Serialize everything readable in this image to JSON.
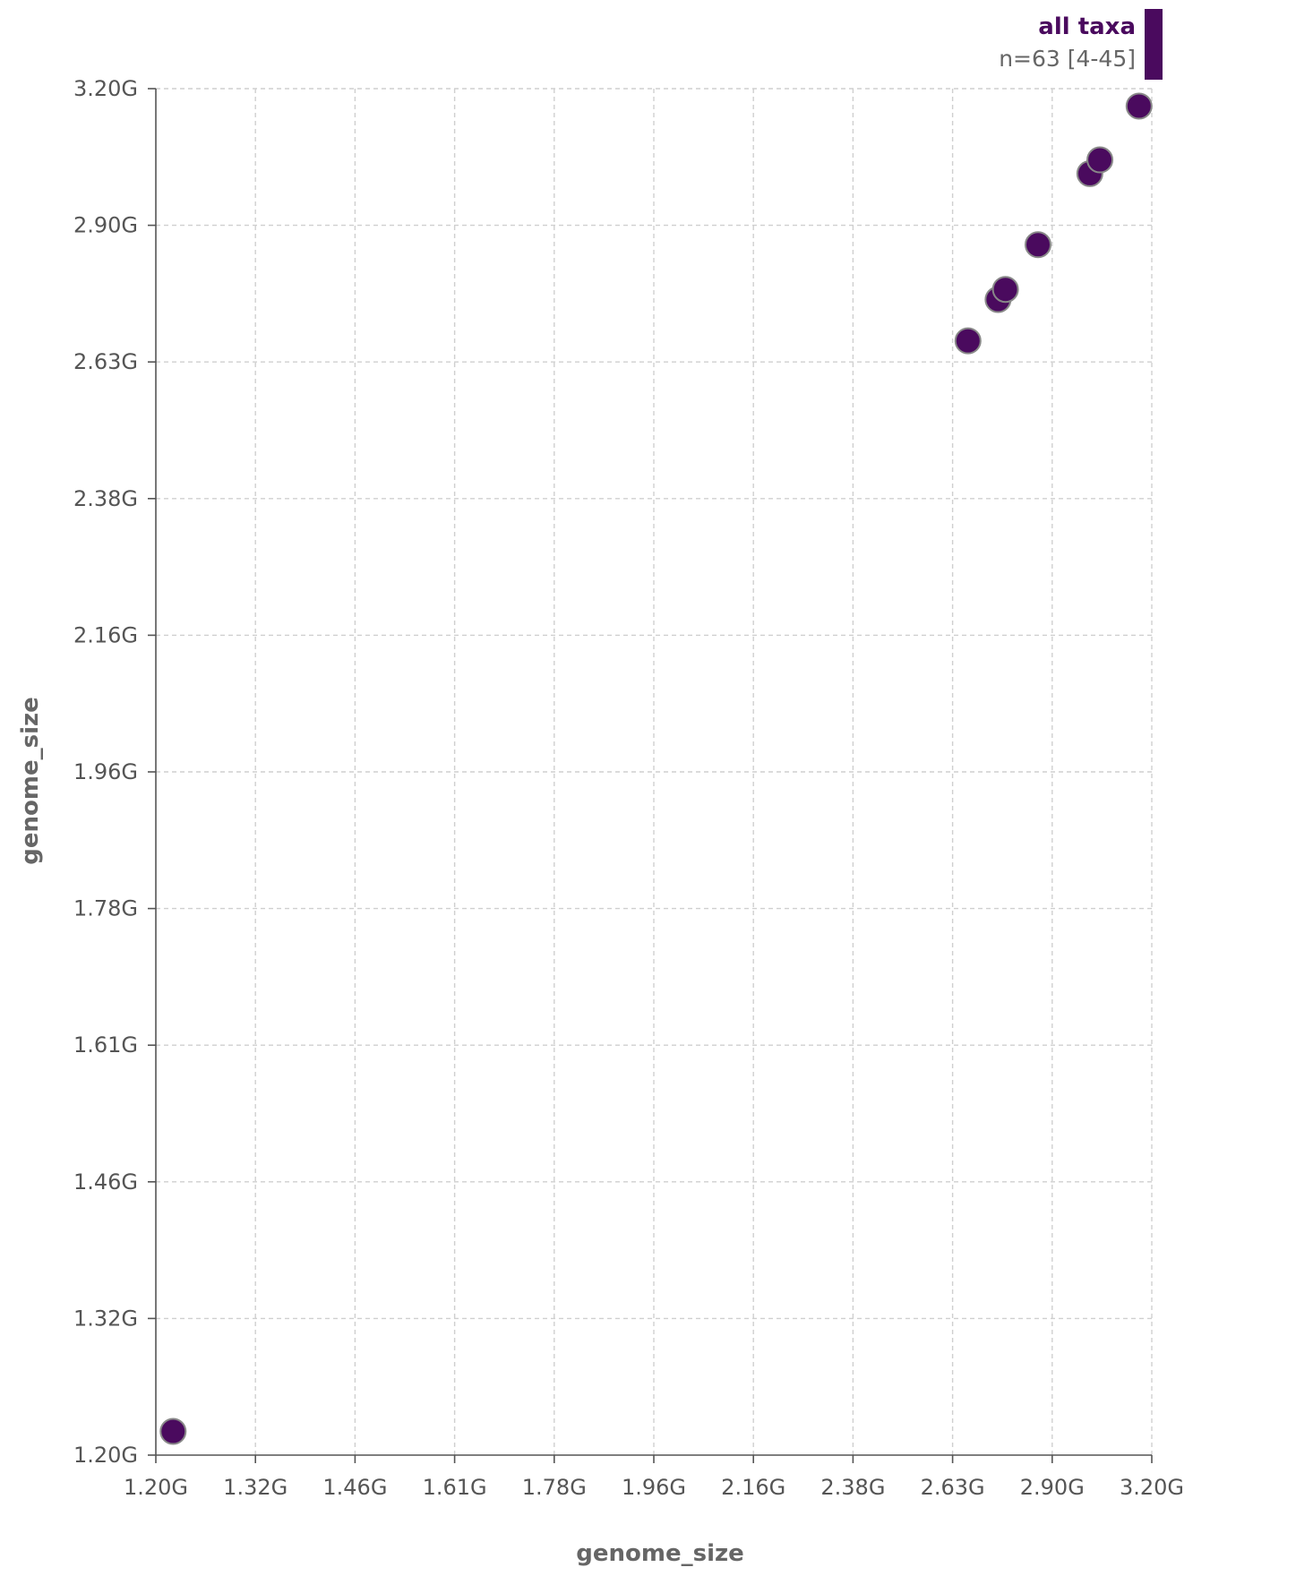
{
  "chart_data": {
    "type": "scatter",
    "title": "",
    "xlabel": "genome_size",
    "ylabel": "genome_size",
    "x_scale": "log",
    "y_scale": "log",
    "xlim": [
      "1.20G",
      "3.20G"
    ],
    "ylim": [
      "1.20G",
      "3.20G"
    ],
    "x_ticks": [
      "1.20G",
      "1.32G",
      "1.46G",
      "1.61G",
      "1.78G",
      "1.96G",
      "2.16G",
      "2.38G",
      "2.63G",
      "2.90G",
      "3.20G"
    ],
    "y_ticks": [
      "1.20G",
      "1.32G",
      "1.46G",
      "1.61G",
      "1.78G",
      "1.96G",
      "2.16G",
      "2.38G",
      "2.63G",
      "2.90G",
      "3.20G"
    ],
    "grid": true,
    "legend": {
      "placement": "top-right",
      "title": "all taxa",
      "subtitle": "n=63 [4-45]"
    },
    "series": [
      {
        "color": "#4a0a5e",
        "points": [
          {
            "x": 1.22,
            "y": 1.22
          },
          {
            "x": 2.67,
            "y": 2.67
          },
          {
            "x": 2.75,
            "y": 2.75
          },
          {
            "x": 2.77,
            "y": 2.77
          },
          {
            "x": 2.86,
            "y": 2.86
          },
          {
            "x": 3.01,
            "y": 3.01
          },
          {
            "x": 3.04,
            "y": 3.04
          },
          {
            "x": 3.16,
            "y": 3.16
          }
        ]
      }
    ]
  }
}
